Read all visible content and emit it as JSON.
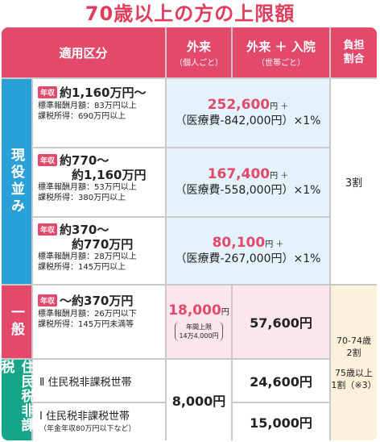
{
  "title": "70歳以上の方の上限額",
  "header": {
    "category": "適用区分",
    "outpatient": "外来",
    "outpatient_sub": "（個人ごと）",
    "outpatient_inpatient": "外来 ＋ 入院",
    "outpatient_inpatient_sub": "（世帯ごと）",
    "burden": "負担割合"
  },
  "groups": {
    "working": "現役並み",
    "general": "一般",
    "exempt": "住民税非課税"
  },
  "badge": "年収",
  "rows": [
    {
      "income": "約1,160万円〜",
      "detail1": "標準報酬月額：83万円以上",
      "detail2": "課税所得：690万円以上",
      "amount": "252,600",
      "unit": "円 ＋",
      "formula": "（医療費-842,000円）×1%"
    },
    {
      "income": "約770〜",
      "income2": "約1,160万円",
      "detail1": "標準報酬月額：53万円以上",
      "detail2": "課税所得：380万円以上",
      "amount": "167,400",
      "unit": "円 ＋",
      "formula": "（医療費-558,000円）×1%"
    },
    {
      "income": "約370〜",
      "income2": "約770万円",
      "detail1": "標準報酬月額：28万円以上",
      "detail2": "課税所得：145万円以上",
      "amount": "80,100",
      "unit": "円 ＋",
      "formula": "（医療費-267,000円）×1%"
    }
  ],
  "working_burden": "3割",
  "general": {
    "income": "〜約370万円",
    "detail1": "標準報酬月額：26万円以下",
    "detail2": "課税所得：145万円未満等",
    "outpatient_amount": "18,000",
    "outpatient_unit": "円",
    "annual_cap": "年間上限",
    "annual_cap_amount": "14万4,000円",
    "household": "57,600円"
  },
  "exempt": {
    "row2_label": "Ⅱ 住民税非課税世帯",
    "row1_label": "Ⅰ 住民税非課税世帯",
    "row1_sub": "（年金年収80万円以下など）",
    "outpatient": "8,000円",
    "row2_household": "24,600円",
    "row1_household": "15,000円"
  },
  "other_burden": {
    "line1": "70-74歳",
    "line2": "2割",
    "line3": "75歳以上",
    "line4": "1割（※3）"
  }
}
